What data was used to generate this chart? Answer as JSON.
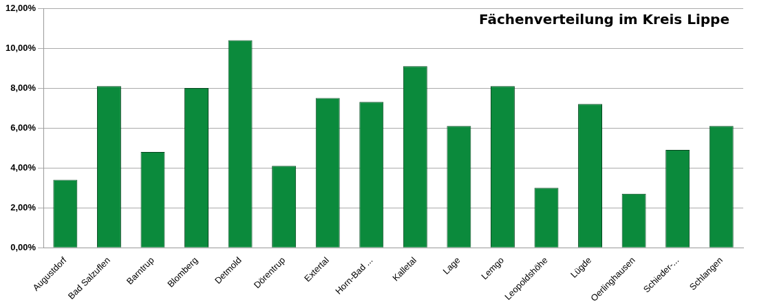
{
  "chart_data": {
    "type": "bar",
    "title": "Fächenverteilung im Kreis Lippe",
    "categories": [
      "Augustdorf",
      "Bad Salzuflen",
      "Barntrup",
      "Blomberg",
      "Detmold",
      "Dörentrup",
      "Extertal",
      "Horn-Bad ...",
      "Kalletal",
      "Lage",
      "Lemgo",
      "Leopoldshöhe",
      "Lügde",
      "Oerlinghausen",
      "Schieder-...",
      "Schlangen"
    ],
    "values": [
      3.4,
      8.1,
      4.8,
      8.0,
      10.4,
      4.1,
      7.5,
      7.3,
      9.1,
      6.1,
      8.1,
      3.0,
      7.2,
      2.7,
      4.9,
      6.1
    ],
    "color": "#0b8a3c",
    "ylim": [
      0,
      12
    ],
    "yticks": [
      {
        "value": 0,
        "label": "0,00%"
      },
      {
        "value": 2,
        "label": "2,00%"
      },
      {
        "value": 4,
        "label": "4,00%"
      },
      {
        "value": 6,
        "label": "6,00%"
      },
      {
        "value": 8,
        "label": "8,00%"
      },
      {
        "value": 10,
        "label": "10,00%"
      },
      {
        "value": 12,
        "label": "12,00%"
      }
    ],
    "grid": "y",
    "legend": false
  }
}
